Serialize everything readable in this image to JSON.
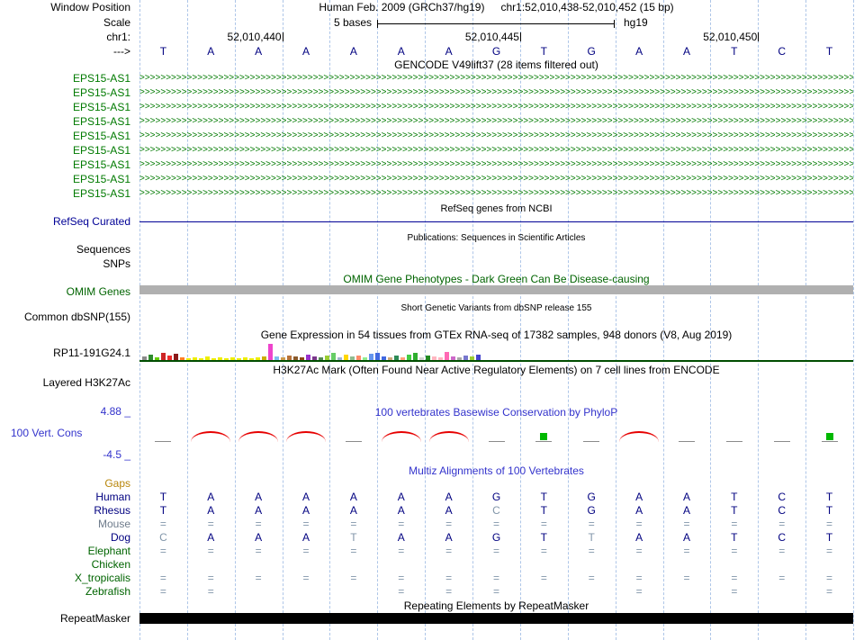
{
  "colors": {
    "gene_green": "#007a00",
    "navy": "#000096",
    "omim_green": "#006400",
    "cons_blue": "#3333cc",
    "grid_blue": "#aec6e8",
    "muted_base": "#8296aa",
    "base_navy": "#000080",
    "omim_gray": "#b0b0b0",
    "gtex_line_green": "#004d00",
    "peak_red": "#e60000",
    "pos_green": "#00b800",
    "repeat_black": "#000000"
  },
  "header": {
    "window_position_label": "Window Position",
    "assembly": "Human Feb. 2009 (GRCh37/hg19)",
    "position": "chr1:52,010,438-52,010,452 (15 bp)",
    "scale_label": "Scale",
    "scale_text": "5 bases",
    "assembly_short": "hg19",
    "chrom_label": "chr1:",
    "strand_arrow": "--->",
    "coordinates": [
      {
        "text": "52,010,440",
        "tick_col": 3
      },
      {
        "text": "52,010,445",
        "tick_col": 8
      },
      {
        "text": "52,010,450",
        "tick_col": 13
      }
    ],
    "bases": [
      "T",
      "A",
      "A",
      "A",
      "A",
      "A",
      "A",
      "G",
      "T",
      "G",
      "A",
      "A",
      "T",
      "C",
      "T"
    ]
  },
  "tracks": {
    "gencode": {
      "title": "GENCODE V49lift37 (28 items filtered out)",
      "items": [
        "EPS15-AS1",
        "EPS15-AS1",
        "EPS15-AS1",
        "EPS15-AS1",
        "EPS15-AS1",
        "EPS15-AS1",
        "EPS15-AS1",
        "EPS15-AS1",
        "EPS15-AS1"
      ]
    },
    "refseq": {
      "title": "RefSeq genes from NCBI",
      "label": "RefSeq Curated"
    },
    "publications": {
      "title": "Publications: Sequences in Scientific Articles",
      "label_sequences": "Sequences",
      "label_snps": "SNPs"
    },
    "omim": {
      "title": "OMIM Gene Phenotypes - Dark Green Can Be Disease-causing",
      "label": "OMIM Genes"
    },
    "dbsnp": {
      "title": "Short Genetic Variants from dbSNP release 155",
      "label": "Common dbSNP(155)"
    },
    "gtex": {
      "title": "Gene Expression in 54 tissues from GTEx RNA-seq of 17382 samples, 948 donors (V8, Aug 2019)",
      "label": "RP11-191G24.1",
      "bars": [
        [
          4,
          "#8b8b8b"
        ],
        [
          6,
          "#2e8b2e"
        ],
        [
          3,
          "#66cd00"
        ],
        [
          8,
          "#cd2626"
        ],
        [
          5,
          "#ee2c2c"
        ],
        [
          7,
          "#8b1a1a"
        ],
        [
          3,
          "#ff7f24"
        ],
        [
          2,
          "#eeee00"
        ],
        [
          3,
          "#eeee00"
        ],
        [
          2,
          "#eeee00"
        ],
        [
          4,
          "#eeee00"
        ],
        [
          2,
          "#eeee00"
        ],
        [
          3,
          "#eeee00"
        ],
        [
          2,
          "#eeee00"
        ],
        [
          3,
          "#eeee00"
        ],
        [
          2,
          "#eeee00"
        ],
        [
          3,
          "#eeee00"
        ],
        [
          2,
          "#eeee00"
        ],
        [
          3,
          "#eeee00"
        ],
        [
          4,
          "#cdad00"
        ],
        [
          18,
          "#ee44cc"
        ],
        [
          4,
          "#7ec0ee"
        ],
        [
          3,
          "#cd9b4d"
        ],
        [
          5,
          "#b8733a"
        ],
        [
          4,
          "#8b5a2b"
        ],
        [
          3,
          "#8b4513"
        ],
        [
          6,
          "#9932cc"
        ],
        [
          4,
          "#7a378b"
        ],
        [
          3,
          "#548b54"
        ],
        [
          5,
          "#9acd32"
        ],
        [
          8,
          "#66cd66"
        ],
        [
          3,
          "#a2b5cd"
        ],
        [
          6,
          "#ffd700"
        ],
        [
          4,
          "#8fbc8f"
        ],
        [
          5,
          "#ff8c69"
        ],
        [
          3,
          "#90ee90"
        ],
        [
          7,
          "#6495ed"
        ],
        [
          8,
          "#4169e1"
        ],
        [
          4,
          "#4169e1"
        ],
        [
          3,
          "#cdaa7d"
        ],
        [
          5,
          "#2e8b57"
        ],
        [
          3,
          "#ffa07a"
        ],
        [
          6,
          "#43cd43"
        ],
        [
          8,
          "#2eae2e"
        ],
        [
          3,
          "#d3d3d3"
        ],
        [
          5,
          "#228b22"
        ],
        [
          4,
          "#ffb6c1"
        ],
        [
          3,
          "#ffb6c1"
        ],
        [
          9,
          "#ff69b4"
        ],
        [
          4,
          "#cd69c9"
        ],
        [
          3,
          "#a9a9a9"
        ],
        [
          5,
          "#7777cd"
        ],
        [
          4,
          "#9acd32"
        ],
        [
          6,
          "#4444cd"
        ]
      ]
    },
    "h3k27ac": {
      "title": "H3K27Ac Mark (Often Found Near Active Regulatory Elements) on 7 cell lines from ENCODE",
      "label": "Layered H3K27Ac"
    },
    "conservation": {
      "title": "100 vertebrates Basewise Conservation by PhyloP",
      "label": "100 Vert. Cons",
      "max_label": "4.88 _",
      "min_label": "-4.5 _",
      "columns": [
        "dash",
        "peak",
        "peak",
        "peak",
        "dash",
        "peak",
        "peak",
        "dash",
        "pos",
        "dash",
        "peak",
        "dash",
        "dash",
        "dash",
        "pos"
      ]
    },
    "multiz": {
      "title": "Multiz Alignments of 100 Vertebrates",
      "rows": [
        {
          "name": "Gaps",
          "color": "#b8860b",
          "cells": [
            "",
            "",
            "",
            "",
            "",
            "",
            "",
            "",
            "",
            "",
            "",
            "",
            "",
            "",
            ""
          ],
          "muted": []
        },
        {
          "name": "Human",
          "color": "#000080",
          "cells": [
            "T",
            "A",
            "A",
            "A",
            "A",
            "A",
            "A",
            "G",
            "T",
            "G",
            "A",
            "A",
            "T",
            "C",
            "T"
          ],
          "muted": []
        },
        {
          "name": "Rhesus",
          "color": "#000080",
          "cells": [
            "T",
            "A",
            "A",
            "A",
            "A",
            "A",
            "A",
            "C",
            "T",
            "G",
            "A",
            "A",
            "T",
            "C",
            "T"
          ],
          "muted": [
            7
          ]
        },
        {
          "name": "Mouse",
          "color": "#6e7b8b",
          "cells": [
            "=",
            "=",
            "=",
            "=",
            "=",
            "=",
            "=",
            "=",
            "=",
            "=",
            "=",
            "=",
            "=",
            "=",
            "="
          ],
          "muted": "all"
        },
        {
          "name": "Dog",
          "color": "#000080",
          "cells": [
            "C",
            "A",
            "A",
            "A",
            "T",
            "A",
            "A",
            "G",
            "T",
            "T",
            "A",
            "A",
            "T",
            "C",
            "T"
          ],
          "muted": [
            0,
            4,
            9
          ]
        },
        {
          "name": "Elephant",
          "color": "#006400",
          "cells": [
            "=",
            "=",
            "=",
            "=",
            "=",
            "=",
            "=",
            "=",
            "=",
            "=",
            "=",
            "=",
            "=",
            "=",
            "="
          ],
          "muted": "all"
        },
        {
          "name": "Chicken",
          "color": "#006400",
          "cells": [
            "",
            "",
            "",
            "",
            "",
            "",
            "",
            "",
            "",
            "",
            "",
            "",
            "",
            "",
            ""
          ],
          "muted": []
        },
        {
          "name": "X_tropicalis",
          "color": "#006400",
          "cells": [
            "=",
            "=",
            "=",
            "=",
            "=",
            "=",
            "=",
            "=",
            "=",
            "=",
            "=",
            "=",
            "=",
            "=",
            "="
          ],
          "muted": "all"
        },
        {
          "name": "Zebrafish",
          "color": "#006400",
          "cells": [
            "=",
            "=",
            "",
            "",
            "",
            "=",
            "=",
            "=",
            "",
            "",
            "=",
            "",
            "=",
            "",
            "="
          ],
          "muted": "all"
        }
      ]
    },
    "repeatmasker": {
      "title": "Repeating Elements by RepeatMasker",
      "label": "RepeatMasker"
    }
  }
}
